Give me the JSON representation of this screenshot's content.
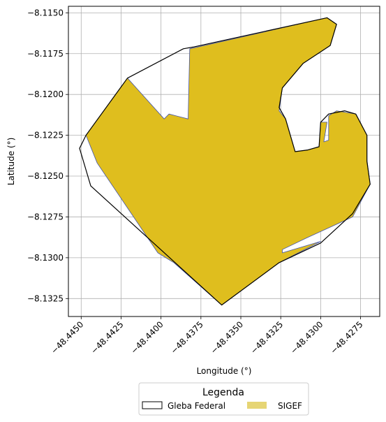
{
  "chart_data": {
    "type": "map",
    "xlabel": "Longitude (°)",
    "ylabel": "Latitude (°)",
    "xlim": [
      -48.4458,
      -48.4263
    ],
    "ylim": [
      -8.1336,
      -8.1146
    ],
    "x_ticks": [
      -48.445,
      -48.4425,
      -48.44,
      -48.4375,
      -48.435,
      -48.4325,
      -48.43,
      -48.4275
    ],
    "x_tick_labels": [
      "−48.4450",
      "−48.4425",
      "−48.4400",
      "−48.4375",
      "−48.4350",
      "−48.4325",
      "−48.4300",
      "−48.4275"
    ],
    "y_ticks": [
      -8.115,
      -8.1175,
      -8.12,
      -8.1225,
      -8.125,
      -8.1275,
      -8.13,
      -8.1325
    ],
    "y_tick_labels": [
      "−8.1150",
      "−8.1175",
      "−8.1200",
      "−8.1225",
      "−8.1250",
      "−8.1275",
      "−8.1300",
      "−8.1325"
    ],
    "grid": true,
    "legend": {
      "title": "Legenda",
      "placement": "bottom-center",
      "entries": [
        {
          "label": "Gleba Federal",
          "style": "outline",
          "edge": "#000000",
          "fill": "none"
        },
        {
          "label": "SIGEF",
          "style": "filled",
          "fill": "#e6d574",
          "edge": "none"
        }
      ]
    },
    "layers": [
      {
        "name": "SIGEF",
        "fill": "#dfbe1e",
        "edge": "#4455aa",
        "polygon": [
          [
            -48.4421,
            -8.119
          ],
          [
            -48.4398,
            -8.1215
          ],
          [
            -48.4395,
            -8.1212
          ],
          [
            -48.4383,
            -8.1215
          ],
          [
            -48.4382,
            -8.1172
          ],
          [
            -48.4296,
            -8.1153
          ],
          [
            -48.429,
            -8.1157
          ],
          [
            -48.4294,
            -8.117
          ],
          [
            -48.4311,
            -8.1181
          ],
          [
            -48.4324,
            -8.1196
          ],
          [
            -48.4326,
            -8.121
          ],
          [
            -48.4322,
            -8.1215
          ],
          [
            -48.4316,
            -8.1235
          ],
          [
            -48.4308,
            -8.1234
          ],
          [
            -48.4301,
            -8.1232
          ],
          [
            -48.43,
            -8.1217
          ],
          [
            -48.4296,
            -8.1217
          ],
          [
            -48.4298,
            -8.1229
          ],
          [
            -48.4295,
            -8.1228
          ],
          [
            -48.4295,
            -8.1213
          ],
          [
            -48.429,
            -8.121
          ],
          [
            -48.4284,
            -8.1211
          ],
          [
            -48.4278,
            -8.1212
          ],
          [
            -48.4271,
            -8.1225
          ],
          [
            -48.4271,
            -8.124
          ],
          [
            -48.4269,
            -8.1255
          ],
          [
            -48.428,
            -8.1275
          ],
          [
            -48.4309,
            -8.1288
          ],
          [
            -48.4324,
            -8.1295
          ],
          [
            -48.4324,
            -8.1297
          ],
          [
            -48.43,
            -8.129
          ],
          [
            -48.4326,
            -8.1303
          ],
          [
            -48.4362,
            -8.1329
          ],
          [
            -48.4392,
            -8.1303
          ],
          [
            -48.4402,
            -8.1297
          ],
          [
            -48.444,
            -8.1242
          ],
          [
            -48.4447,
            -8.1225
          ]
        ]
      },
      {
        "name": "Gleba Federal",
        "fill": "none",
        "edge": "#000000",
        "polygon": [
          [
            -48.4421,
            -8.119
          ],
          [
            -48.4386,
            -8.1172
          ],
          [
            -48.438,
            -8.1171
          ],
          [
            -48.4296,
            -8.1153
          ],
          [
            -48.429,
            -8.1157
          ],
          [
            -48.4294,
            -8.117
          ],
          [
            -48.4311,
            -8.1181
          ],
          [
            -48.4324,
            -8.1196
          ],
          [
            -48.4326,
            -8.1208
          ],
          [
            -48.4322,
            -8.1215
          ],
          [
            -48.4316,
            -8.1235
          ],
          [
            -48.4308,
            -8.1234
          ],
          [
            -48.4301,
            -8.1232
          ],
          [
            -48.43,
            -8.1217
          ],
          [
            -48.4295,
            -8.1212
          ],
          [
            -48.4285,
            -8.121
          ],
          [
            -48.4278,
            -8.1212
          ],
          [
            -48.4271,
            -8.1225
          ],
          [
            -48.4271,
            -8.1241
          ],
          [
            -48.4269,
            -8.1255
          ],
          [
            -48.428,
            -8.1273
          ],
          [
            -48.43,
            -8.1291
          ],
          [
            -48.4326,
            -8.1303
          ],
          [
            -48.4362,
            -8.1329
          ],
          [
            -48.4444,
            -8.1256
          ],
          [
            -48.4451,
            -8.1233
          ],
          [
            -48.4447,
            -8.1225
          ]
        ]
      }
    ]
  }
}
